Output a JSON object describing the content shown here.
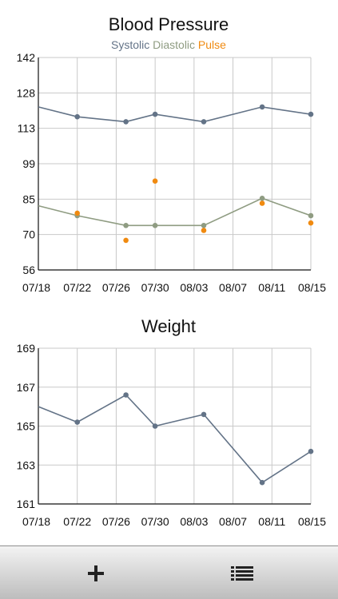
{
  "colors": {
    "systolic": "#637387",
    "diastolic": "#8f9c82",
    "pulse": "#f08a10",
    "weight": "#637387"
  },
  "chart_data": [
    {
      "type": "line",
      "title": "Blood Pressure",
      "legend_placement": "top",
      "x_tick_labels": [
        "07/18",
        "07/22",
        "07/26",
        "07/30",
        "08/03",
        "08/07",
        "08/11",
        "08/15"
      ],
      "y_tick_labels": [
        "142",
        "128",
        "113",
        "99",
        "85",
        "70",
        "56"
      ],
      "ylim": [
        56,
        142
      ],
      "grid": true,
      "series": [
        {
          "name": "Systolic",
          "style": "line",
          "color": "#637387",
          "points": [
            {
              "x": "07/18",
              "y": 122
            },
            {
              "x": "07/22",
              "y": 118
            },
            {
              "x": "07/27",
              "y": 116
            },
            {
              "x": "07/30",
              "y": 119
            },
            {
              "x": "08/04",
              "y": 116
            },
            {
              "x": "08/10",
              "y": 122
            },
            {
              "x": "08/15",
              "y": 119
            }
          ]
        },
        {
          "name": "Diastolic",
          "style": "line",
          "color": "#8f9c82",
          "points": [
            {
              "x": "07/18",
              "y": 82
            },
            {
              "x": "07/22",
              "y": 78
            },
            {
              "x": "07/27",
              "y": 74
            },
            {
              "x": "07/30",
              "y": 74
            },
            {
              "x": "08/04",
              "y": 74
            },
            {
              "x": "08/10",
              "y": 85
            },
            {
              "x": "08/15",
              "y": 78
            }
          ]
        },
        {
          "name": "Pulse",
          "style": "scatter",
          "color": "#f08a10",
          "points": [
            {
              "x": "07/22",
              "y": 79
            },
            {
              "x": "07/27",
              "y": 68
            },
            {
              "x": "07/30",
              "y": 92
            },
            {
              "x": "08/04",
              "y": 72
            },
            {
              "x": "08/10",
              "y": 83
            },
            {
              "x": "08/15",
              "y": 75
            }
          ]
        }
      ]
    },
    {
      "type": "line",
      "title": "Weight",
      "x_tick_labels": [
        "07/18",
        "07/22",
        "07/26",
        "07/30",
        "08/03",
        "08/07",
        "08/11",
        "08/15"
      ],
      "y_tick_labels": [
        "169",
        "167",
        "165",
        "163",
        "161"
      ],
      "ylim": [
        161,
        169
      ],
      "grid": true,
      "series": [
        {
          "style": "line",
          "color": "#637387",
          "points": [
            {
              "x": "07/18",
              "y": 166.0
            },
            {
              "x": "07/22",
              "y": 165.2
            },
            {
              "x": "07/27",
              "y": 166.6
            },
            {
              "x": "07/30",
              "y": 165.0
            },
            {
              "x": "08/04",
              "y": 165.6
            },
            {
              "x": "08/10",
              "y": 162.1
            },
            {
              "x": "08/15",
              "y": 163.7
            }
          ]
        }
      ]
    }
  ],
  "toolbar": {
    "buttons": [
      {
        "name": "add-entry-button",
        "icon": "plus-icon"
      },
      {
        "name": "list-view-button",
        "icon": "list-icon"
      }
    ]
  }
}
